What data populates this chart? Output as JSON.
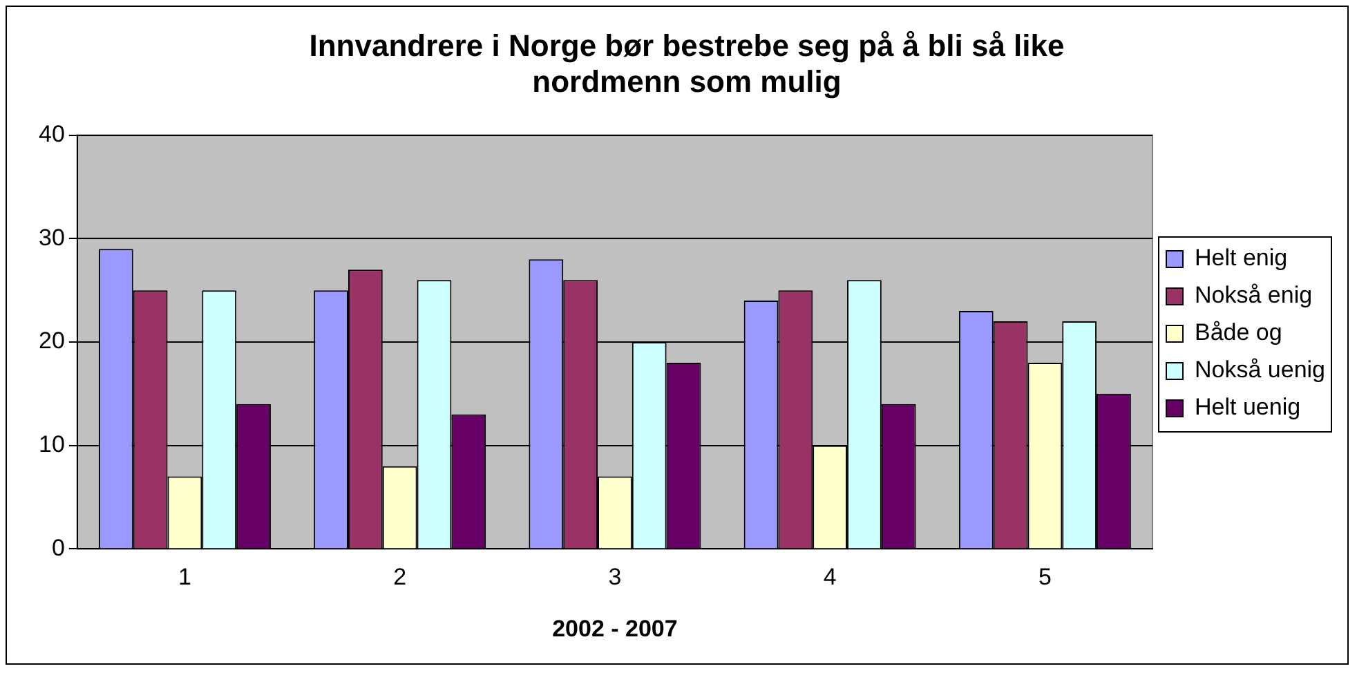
{
  "chart_data": {
    "type": "bar",
    "title": "Innvandrere i Norge bør bestrebe seg på å bli så like nordmenn som mulig",
    "xlabel": "2002 - 2007",
    "categories": [
      "1",
      "2",
      "3",
      "4",
      "5"
    ],
    "series": [
      {
        "name": "Helt enig",
        "color": "#9999ff",
        "values": [
          29,
          25,
          28,
          24,
          23
        ]
      },
      {
        "name": "Nokså enig",
        "color": "#993366",
        "values": [
          25,
          27,
          26,
          25,
          22
        ]
      },
      {
        "name": "Både og",
        "color": "#ffffcc",
        "values": [
          7,
          8,
          7,
          10,
          18
        ]
      },
      {
        "name": "Nokså uenig",
        "color": "#ccffff",
        "values": [
          25,
          26,
          20,
          26,
          22
        ]
      },
      {
        "name": "Helt uenig",
        "color": "#660066",
        "values": [
          14,
          13,
          18,
          14,
          15
        ]
      }
    ],
    "ylim": [
      0,
      40
    ],
    "yticks": [
      0,
      10,
      20,
      30,
      40
    ],
    "grid": "y",
    "legend": "right"
  }
}
